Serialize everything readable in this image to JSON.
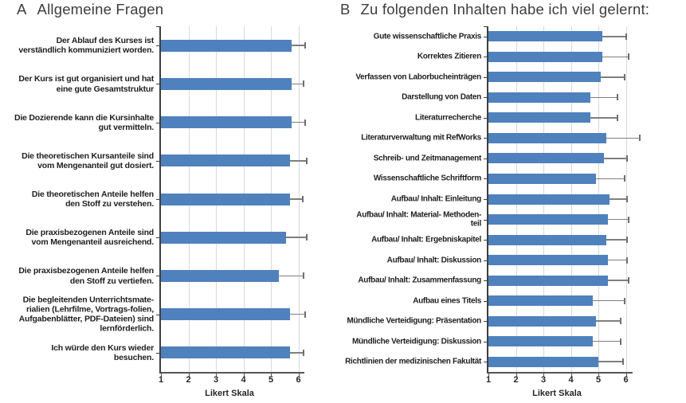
{
  "chart_data": [
    {
      "type": "bar",
      "orientation": "horizontal",
      "panel": "A",
      "title": "Allgemeine Fragen",
      "xlabel": "Likert Skala",
      "xlim": [
        1,
        6
      ],
      "xticks": [
        1,
        2,
        3,
        4,
        5,
        6
      ],
      "grid": true,
      "legend": false,
      "bar_color": "#4f81bd",
      "error_color": "#7f7f7f",
      "error_direction": "plus",
      "categories": [
        "Der Ablauf des Kurses ist\nverständlich kommuniziert worden.",
        "Der Kurs ist gut organisiert und hat\neine gute Gesamtstruktur",
        "Die Dozierende kann die Kursinhalte\ngut vermitteln.",
        "Die theoretischen Kursanteile sind\nvom Mengenanteil gut dosiert.",
        "Die theoretischen Anteile helfen\nden Stoff zu verstehen.",
        "Die praxisbezogenen Anteile sind\nvom Mengenanteil ausreichend.",
        "Die praxisbezogenen Anteile helfen\nden Stoff zu vertiefen.",
        "Die begleitenden Unterrichtsmate-\nrialien (Lehrfilme, Vortrags-folien,\nAufgabenblätter, PDF-Dateien) sind\nlernförderlich.",
        "Ich würde den Kurs wieder\nbesuchen."
      ],
      "values": [
        5.75,
        5.75,
        5.75,
        5.7,
        5.7,
        5.55,
        5.3,
        5.7,
        5.7
      ],
      "errors_upper": [
        0.5,
        0.45,
        0.5,
        0.6,
        0.45,
        0.75,
        0.9,
        0.55,
        0.5
      ]
    },
    {
      "type": "bar",
      "orientation": "horizontal",
      "panel": "B",
      "title": "Zu folgenden Inhalten habe ich viel gelernt:",
      "xlabel": "Likert Skala",
      "xlim": [
        1,
        6
      ],
      "xticks": [
        1,
        2,
        3,
        4,
        5,
        6
      ],
      "grid": true,
      "legend": false,
      "bar_color": "#4f81bd",
      "error_color": "#7f7f7f",
      "error_direction": "plus",
      "categories": [
        "Gute wissenschaftliche Praxis",
        "Korrektes Zitieren",
        "Verfassen von Laborbucheinträgen",
        "Darstellung von Daten",
        "Literaturrecherche",
        "Literaturverwaltung mit RefWorks",
        "Schreib- und Zeitmanagement",
        "Wissenschaftliche Schriftform",
        "Aufbau/ Inhalt: Einleitung",
        "Aufbau/ Inhalt: Material- Methoden-\nteil",
        "Aufbau/ Inhalt: Ergebniskapitel",
        "Aufbau/ Inhalt: Diskussion",
        "Aufbau/ Inhalt: Zusammenfassung",
        "Aufbau eines Titels",
        "Mündliche Verteidigung: Präsentation",
        "Mündliche Verteidigung: Diskussion",
        "Richtlinien der medizinischen Fakultät"
      ],
      "values": [
        5.15,
        5.15,
        5.1,
        4.7,
        4.7,
        5.3,
        5.2,
        4.9,
        5.4,
        5.35,
        5.3,
        5.35,
        5.35,
        4.8,
        4.9,
        4.8,
        5.0
      ],
      "errors_upper": [
        0.85,
        0.95,
        0.85,
        1.0,
        1.0,
        1.2,
        0.85,
        1.05,
        0.65,
        0.75,
        0.75,
        0.7,
        0.75,
        1.15,
        0.9,
        1.0,
        0.9
      ]
    }
  ]
}
